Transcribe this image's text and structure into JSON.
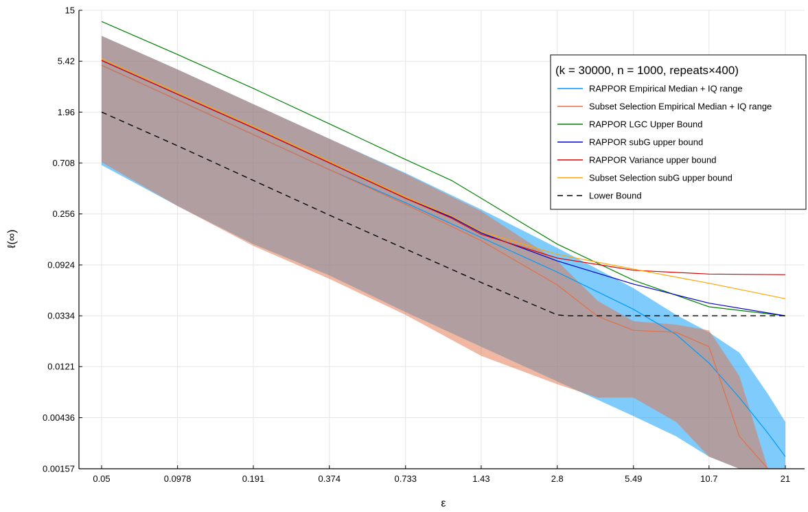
{
  "chart_data": {
    "type": "line",
    "xlabel": "ε",
    "ylabel": "ℓ(∞)",
    "x_scale": "log",
    "y_scale": "log",
    "xlim": [
      0.05,
      21
    ],
    "ylim": [
      0.00157,
      15
    ],
    "x_ticks": [
      "0.05",
      "0.0978",
      "0.191",
      "0.374",
      "0.733",
      "1.43",
      "2.8",
      "5.49",
      "10.7",
      "21"
    ],
    "y_ticks": [
      "15",
      "5.42",
      "1.96",
      "0.708",
      "0.256",
      "0.0924",
      "0.0334",
      "0.0121",
      "0.00436",
      "0.00157"
    ],
    "grid": true,
    "legend_position": "top-right",
    "legend_title": "(k = 30000, n = 1000, repeats×400)",
    "series": [
      {
        "name": "RAPPOR Empirical Median + IQ range",
        "color": "#009af9",
        "style": "band",
        "x": [
          0.05,
          0.0978,
          0.191,
          0.374,
          0.733,
          1.43,
          2.8,
          5.49,
          8.0,
          10.7,
          14.0,
          18.0,
          21
        ],
        "values": [
          5.0,
          2.5,
          1.25,
          0.62,
          0.32,
          0.16,
          0.08,
          0.038,
          0.023,
          0.013,
          0.0065,
          0.0032,
          0.002
        ],
        "lower": [
          0.68,
          0.3,
          0.14,
          0.075,
          0.036,
          0.018,
          0.009,
          0.0045,
          0.003,
          0.002,
          0.00157,
          0.00157,
          0.00157
        ],
        "upper": [
          9.0,
          4.6,
          2.3,
          1.15,
          0.58,
          0.28,
          0.13,
          0.058,
          0.034,
          0.024,
          0.016,
          0.007,
          0.004
        ]
      },
      {
        "name": "Subset Selection Empirical Median + IQ range",
        "color": "#e26f46",
        "style": "band",
        "x": [
          0.05,
          0.0978,
          0.191,
          0.374,
          0.733,
          1.43,
          2.8,
          4.0,
          5.49,
          8.0,
          10.7,
          14.0,
          18.0,
          21
        ],
        "values": [
          5.0,
          2.5,
          1.25,
          0.62,
          0.31,
          0.15,
          0.062,
          0.033,
          0.025,
          0.024,
          0.018,
          0.003,
          0.00157,
          0.00157
        ],
        "lower": [
          0.72,
          0.3,
          0.135,
          0.07,
          0.034,
          0.015,
          0.0085,
          0.0065,
          0.0065,
          0.004,
          0.002,
          0.00157,
          0.00157,
          0.00157
        ],
        "upper": [
          9.0,
          4.6,
          2.3,
          1.15,
          0.57,
          0.27,
          0.1,
          0.045,
          0.03,
          0.028,
          0.025,
          0.01,
          0.00157,
          0.00157
        ]
      },
      {
        "name": "RAPPOR LGC Upper Bound",
        "color": "#008000",
        "style": "solid",
        "x": [
          0.05,
          0.0978,
          0.191,
          0.374,
          0.733,
          1.1,
          1.43,
          2.8,
          5.49,
          10.7,
          21
        ],
        "values": [
          12.0,
          6.2,
          3.15,
          1.55,
          0.76,
          0.5,
          0.35,
          0.14,
          0.068,
          0.04,
          0.0334
        ]
      },
      {
        "name": "RAPPOR subG upper bound",
        "color": "#0000d0",
        "style": "solid",
        "x": [
          0.05,
          0.0978,
          0.191,
          0.374,
          0.733,
          1.1,
          1.43,
          2.8,
          5.49,
          10.7,
          21
        ],
        "values": [
          5.5,
          2.8,
          1.43,
          0.71,
          0.35,
          0.24,
          0.175,
          0.1,
          0.063,
          0.043,
          0.0334
        ]
      },
      {
        "name": "RAPPOR Variance upper bound",
        "color": "#e00000",
        "style": "solid",
        "x": [
          0.05,
          0.0978,
          0.191,
          0.374,
          0.733,
          1.1,
          1.43,
          2.8,
          5.49,
          10.7,
          21
        ],
        "values": [
          5.5,
          2.8,
          1.43,
          0.71,
          0.35,
          0.235,
          0.17,
          0.106,
          0.083,
          0.077,
          0.076
        ]
      },
      {
        "name": "Subset Selection subG upper bound",
        "color": "#ffa500",
        "style": "solid",
        "x": [
          0.05,
          0.0978,
          0.191,
          0.374,
          0.733,
          1.1,
          1.43,
          2.8,
          5.49,
          10.7,
          21
        ],
        "values": [
          5.7,
          2.9,
          1.48,
          0.73,
          0.36,
          0.245,
          0.18,
          0.114,
          0.085,
          0.064,
          0.047
        ]
      },
      {
        "name": "Lower Bound",
        "color": "#000000",
        "style": "dashed",
        "x": [
          0.05,
          0.0978,
          0.191,
          0.374,
          0.733,
          1.43,
          2.8,
          3.05,
          5.49,
          10.7,
          21
        ],
        "values": [
          1.96,
          1.0,
          0.5,
          0.25,
          0.127,
          0.065,
          0.034,
          0.0334,
          0.0334,
          0.0334,
          0.0334
        ]
      }
    ]
  }
}
